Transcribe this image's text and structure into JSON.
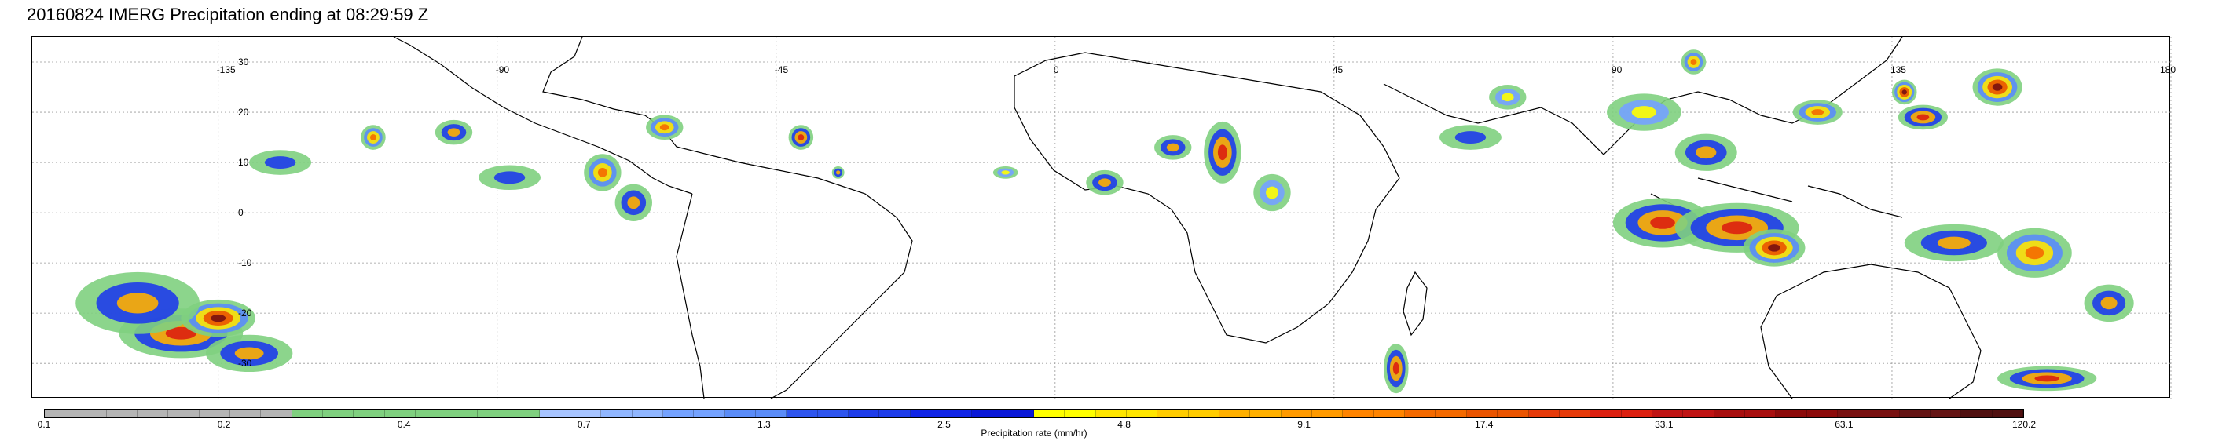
{
  "title": "20160824 IMERG Precipitation ending at 08:29:59 Z",
  "map": {
    "lon_ticks": [
      "-135",
      "-90",
      "-45",
      "0",
      "45",
      "90",
      "135",
      "180"
    ],
    "lat_ticks": [
      "30",
      "20",
      "10",
      "0",
      "-10",
      "-20",
      "-30"
    ]
  },
  "colorbar": {
    "label": "Precipitation rate (mm/hr)",
    "tick_labels": [
      "0.1",
      "0.2",
      "0.4",
      "0.7",
      "1.3",
      "2.5",
      "4.8",
      "9.1",
      "17.4",
      "33.1",
      "63.1",
      "120.2"
    ],
    "colors": [
      "#b4b4b4",
      "#b4b4b4",
      "#b4b4b4",
      "#b4b4b4",
      "#b4b4b4",
      "#b4b4b4",
      "#b4b4b4",
      "#b4b4b4",
      "#7fd07f",
      "#7fd07f",
      "#7fd07f",
      "#7fd07f",
      "#7fd07f",
      "#7fd07f",
      "#7fd07f",
      "#7fd07f",
      "#a7c4ff",
      "#a7c4ff",
      "#90b6ff",
      "#90b6ff",
      "#74a2ff",
      "#74a2ff",
      "#5a8cf8",
      "#5a8cf8",
      "#2e55ee",
      "#2e55ee",
      "#1e3cea",
      "#1e3cea",
      "#1024e6",
      "#1024e6",
      "#0a18d8",
      "#0a18d8",
      "#ffff00",
      "#ffff00",
      "#ffe600",
      "#ffe600",
      "#ffcc00",
      "#ffcc00",
      "#ffb000",
      "#ffb000",
      "#ff9a00",
      "#ff9a00",
      "#ff8400",
      "#ff8400",
      "#f46a00",
      "#f46a00",
      "#ea5400",
      "#ea5400",
      "#e63a0a",
      "#e63a0a",
      "#dc2010",
      "#dc2010",
      "#c01414",
      "#c01414",
      "#a80f0f",
      "#a80f0f",
      "#8c0a0a",
      "#8c0a0a",
      "#781010",
      "#781010",
      "#641414",
      "#641414",
      "#501010",
      "#501010"
    ]
  },
  "features": [
    {
      "lon": -141,
      "lat": -24,
      "rx": 10,
      "ry": 4,
      "level": 8
    },
    {
      "lon": -135,
      "lat": -21,
      "rx": 6,
      "ry": 3,
      "level": 9
    },
    {
      "lon": -148,
      "lat": -18,
      "rx": 10,
      "ry": 5,
      "level": 6
    },
    {
      "lon": -130,
      "lat": -28,
      "rx": 7,
      "ry": 3,
      "level": 6
    },
    {
      "lon": -125,
      "lat": 10,
      "rx": 5,
      "ry": 2,
      "level": 4
    },
    {
      "lon": -110,
      "lat": 15,
      "rx": 2,
      "ry": 2,
      "level": 7
    },
    {
      "lon": -97,
      "lat": 16,
      "rx": 3,
      "ry": 2,
      "level": 6
    },
    {
      "lon": -73,
      "lat": 8,
      "rx": 3,
      "ry": 3,
      "level": 7
    },
    {
      "lon": -68,
      "lat": 2,
      "rx": 3,
      "ry": 3,
      "level": 6
    },
    {
      "lon": -63,
      "lat": 17,
      "rx": 3,
      "ry": 2,
      "level": 7
    },
    {
      "lon": -41,
      "lat": 15,
      "rx": 2,
      "ry": 2,
      "level": 8
    },
    {
      "lon": -35,
      "lat": 8,
      "rx": 1,
      "ry": 1,
      "level": 6
    },
    {
      "lon": -8,
      "lat": 8,
      "rx": 2,
      "ry": 1,
      "level": 5
    },
    {
      "lon": 8,
      "lat": 6,
      "rx": 3,
      "ry": 2,
      "level": 6
    },
    {
      "lon": 19,
      "lat": 13,
      "rx": 3,
      "ry": 2,
      "level": 6
    },
    {
      "lon": 27,
      "lat": 12,
      "rx": 3,
      "ry": 5,
      "level": 8
    },
    {
      "lon": 35,
      "lat": 4,
      "rx": 3,
      "ry": 3,
      "level": 5
    },
    {
      "lon": 55,
      "lat": -31,
      "rx": 2,
      "ry": 4,
      "level": 8
    },
    {
      "lon": 95,
      "lat": 20,
      "rx": 6,
      "ry": 3,
      "level": 5
    },
    {
      "lon": 105,
      "lat": 12,
      "rx": 5,
      "ry": 3,
      "level": 6
    },
    {
      "lon": 98,
      "lat": -2,
      "rx": 8,
      "ry": 4,
      "level": 8
    },
    {
      "lon": 110,
      "lat": -3,
      "rx": 10,
      "ry": 4,
      "level": 8
    },
    {
      "lon": 116,
      "lat": -7,
      "rx": 5,
      "ry": 3,
      "level": 9
    },
    {
      "lon": 123,
      "lat": 20,
      "rx": 4,
      "ry": 2,
      "level": 7
    },
    {
      "lon": 137,
      "lat": 24,
      "rx": 2,
      "ry": 2,
      "level": 9
    },
    {
      "lon": 140,
      "lat": 19,
      "rx": 4,
      "ry": 2,
      "level": 8
    },
    {
      "lon": 152,
      "lat": 25,
      "rx": 4,
      "ry": 3,
      "level": 9
    },
    {
      "lon": 145,
      "lat": -6,
      "rx": 8,
      "ry": 3,
      "level": 6
    },
    {
      "lon": 158,
      "lat": -8,
      "rx": 6,
      "ry": 4,
      "level": 7
    },
    {
      "lon": 160,
      "lat": -33,
      "rx": 8,
      "ry": 2,
      "level": 8
    },
    {
      "lon": 170,
      "lat": -18,
      "rx": 4,
      "ry": 3,
      "level": 6
    },
    {
      "lon": 103,
      "lat": 30,
      "rx": 2,
      "ry": 2,
      "level": 7
    },
    {
      "lon": 73,
      "lat": 23,
      "rx": 3,
      "ry": 2,
      "level": 5
    },
    {
      "lon": 67,
      "lat": 15,
      "rx": 5,
      "ry": 2,
      "level": 4
    },
    {
      "lon": -88,
      "lat": 7,
      "rx": 5,
      "ry": 2,
      "level": 4
    }
  ]
}
